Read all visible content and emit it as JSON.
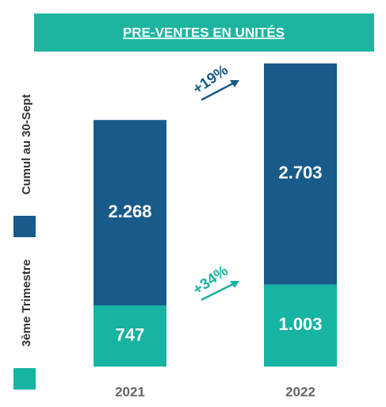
{
  "chart_data": {
    "type": "stacked_bar",
    "title": "PRE-VENTES EN UNITÉS",
    "categories": [
      "2021",
      "2022"
    ],
    "series": [
      {
        "name": "3ème Trimestre",
        "color": "#17b3a3",
        "values": [
          747,
          1003
        ],
        "value_labels": [
          "747",
          "1.003"
        ]
      },
      {
        "name": "Cumul au 30-Sept",
        "color": "#185b8a",
        "values": [
          2268,
          2703
        ],
        "value_labels": [
          "2.268",
          "2.703"
        ]
      }
    ],
    "annotations": [
      "+19%",
      "+34%"
    ]
  }
}
